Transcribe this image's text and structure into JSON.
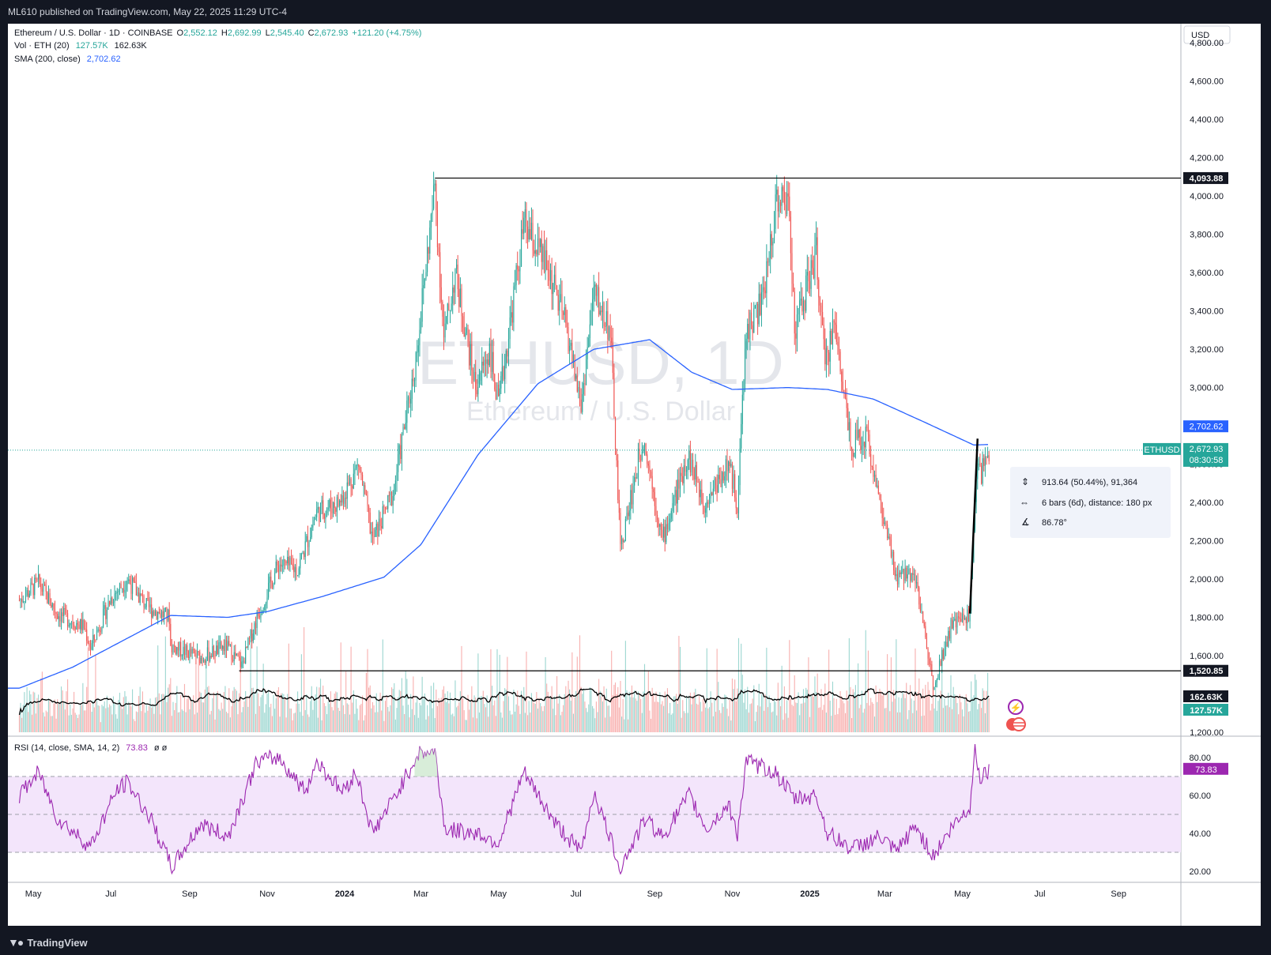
{
  "publisher_line": "ML610 published on TradingView.com, May 22, 2025 11:29 UTC-4",
  "footer_brand": "TradingView",
  "watermark": {
    "main": "ETHUSD, 1D",
    "sub": "Ethereum / U.S. Dollar"
  },
  "currency_button": "USD",
  "legend": {
    "symbol_line": "Ethereum / U.S. Dollar · 1D · COINBASE",
    "ohlc": [
      {
        "k": "O",
        "v": "2,552.12"
      },
      {
        "k": "H",
        "v": "2,692.99"
      },
      {
        "k": "L",
        "v": "2,545.40"
      },
      {
        "k": "C",
        "v": "2,672.93"
      }
    ],
    "change": "+121.20 (+4.75%)",
    "vol_label": "Vol · ETH (20)",
    "vol_v1": "127.57K",
    "vol_v2": "162.63K",
    "sma_label": "SMA (200, close)",
    "sma_value": "2,702.62",
    "rsi_label": "RSI (14, close, SMA, 14, 2)",
    "rsi_value": "73.83",
    "rsi_extra": "ø  ø"
  },
  "price_badges": {
    "high_level": "4,093.88",
    "low_level": "1,520.85",
    "sma": "2,702.62",
    "last": "2,672.93",
    "countdown": "08:30:58",
    "symbol": "ETHUSD",
    "vol_ma": "162.63K",
    "vol": "127.57K",
    "rsi": "73.83"
  },
  "measure_box": {
    "line1": "913.64 (50.44%), 91,364",
    "line2": "6 bars (6d), distance: 180 px",
    "line3": "86.78°"
  },
  "colors": {
    "up": "#26a69a",
    "down": "#ef5350",
    "sma": "#2962ff",
    "rsi": "#7e57c2",
    "rsi_band": "#f3e5fb"
  },
  "chart_data": {
    "type": "candlestick",
    "symbol": "ETHUSD",
    "interval": "1D",
    "price_axis": {
      "min": 1200,
      "max": 4900,
      "ticks": [
        "1,200.00",
        "1,400.00",
        "1,600.00",
        "1,800.00",
        "2,000.00",
        "2,200.00",
        "2,400.00",
        "2,600.00",
        "2,800.00",
        "3,000.00",
        "3,200.00",
        "3,400.00",
        "3,600.00",
        "3,800.00",
        "4,000.00",
        "4,200.00",
        "4,400.00",
        "4,600.00",
        "4,800.00"
      ]
    },
    "time_axis": [
      "May",
      "Jul",
      "Sep",
      "Nov",
      "2024",
      "Mar",
      "May",
      "Jul",
      "Sep",
      "Nov",
      "2025",
      "Mar",
      "May",
      "Jul",
      "Sep"
    ],
    "price_path": [
      [
        "2023-04-20",
        1890
      ],
      [
        "2023-05-05",
        1980
      ],
      [
        "2023-05-20",
        1820
      ],
      [
        "2023-06-10",
        1750
      ],
      [
        "2023-06-15",
        1640
      ],
      [
        "2023-07-01",
        1900
      ],
      [
        "2023-07-14",
        2000
      ],
      [
        "2023-07-30",
        1850
      ],
      [
        "2023-08-16",
        1800
      ],
      [
        "2023-08-17",
        1650
      ],
      [
        "2023-09-10",
        1590
      ],
      [
        "2023-09-30",
        1650
      ],
      [
        "2023-10-12",
        1550
      ],
      [
        "2023-10-24",
        1800
      ],
      [
        "2023-11-10",
        2080
      ],
      [
        "2023-11-25",
        2050
      ],
      [
        "2023-12-10",
        2350
      ],
      [
        "2023-12-28",
        2400
      ],
      [
        "2024-01-12",
        2600
      ],
      [
        "2024-01-23",
        2200
      ],
      [
        "2024-02-08",
        2450
      ],
      [
        "2024-02-25",
        3100
      ],
      [
        "2024-03-12",
        4050
      ],
      [
        "2024-03-19",
        3250
      ],
      [
        "2024-03-28",
        3600
      ],
      [
        "2024-04-13",
        3000
      ],
      [
        "2024-04-24",
        3200
      ],
      [
        "2024-05-01",
        2900
      ],
      [
        "2024-05-21",
        3850
      ],
      [
        "2024-06-10",
        3600
      ],
      [
        "2024-06-24",
        3300
      ],
      [
        "2024-07-05",
        2900
      ],
      [
        "2024-07-15",
        3500
      ],
      [
        "2024-07-28",
        3300
      ],
      [
        "2024-08-05",
        2150
      ],
      [
        "2024-08-23",
        2750
      ],
      [
        "2024-09-07",
        2200
      ],
      [
        "2024-09-27",
        2650
      ],
      [
        "2024-10-10",
        2400
      ],
      [
        "2024-10-29",
        2600
      ],
      [
        "2024-11-05",
        2400
      ],
      [
        "2024-11-12",
        3300
      ],
      [
        "2024-11-25",
        3450
      ],
      [
        "2024-12-06",
        4000
      ],
      [
        "2024-12-16",
        3950
      ],
      [
        "2024-12-20",
        3300
      ],
      [
        "2025-01-06",
        3700
      ],
      [
        "2025-01-13",
        3100
      ],
      [
        "2025-01-20",
        3350
      ],
      [
        "2025-02-03",
        2700
      ],
      [
        "2025-02-15",
        2750
      ],
      [
        "2025-02-25",
        2400
      ],
      [
        "2025-03-10",
        2000
      ],
      [
        "2025-03-24",
        2050
      ],
      [
        "2025-04-08",
        1450
      ],
      [
        "2025-04-22",
        1750
      ],
      [
        "2025-05-07",
        1820
      ],
      [
        "2025-05-13",
        2650
      ],
      [
        "2025-05-16",
        2550
      ],
      [
        "2025-05-22",
        2672.93
      ]
    ],
    "sma200_path": [
      [
        "2023-04-20",
        1430
      ],
      [
        "2023-06-01",
        1540
      ],
      [
        "2023-08-17",
        1810
      ],
      [
        "2023-10-01",
        1800
      ],
      [
        "2023-11-01",
        1830
      ],
      [
        "2023-12-15",
        1910
      ],
      [
        "2024-02-01",
        2010
      ],
      [
        "2024-03-01",
        2180
      ],
      [
        "2024-04-15",
        2650
      ],
      [
        "2024-06-01",
        3020
      ],
      [
        "2024-07-15",
        3200
      ],
      [
        "2024-08-28",
        3250
      ],
      [
        "2024-09-30",
        3080
      ],
      [
        "2024-11-01",
        2990
      ],
      [
        "2024-12-15",
        3000
      ],
      [
        "2025-01-15",
        2990
      ],
      [
        "2025-02-20",
        2940
      ],
      [
        "2025-04-01",
        2820
      ],
      [
        "2025-05-10",
        2700
      ],
      [
        "2025-05-22",
        2702.62
      ]
    ],
    "horizontal_levels": [
      4093.88,
      1520.85
    ],
    "trend_line": {
      "from": [
        "2025-05-07",
        1820
      ],
      "to": [
        "2025-05-13",
        2733
      ]
    },
    "volume": {
      "axis_max_label": "162.63K",
      "ma_label": "20"
    },
    "rsi": {
      "axis": {
        "min": 15,
        "max": 90,
        "ticks": [
          "20.00",
          "40.00",
          "60.00",
          "80.00"
        ]
      },
      "upper_band": 70,
      "mid": 50,
      "lower_band": 30,
      "path": [
        [
          "2023-04-20",
          60
        ],
        [
          "2023-05-05",
          72
        ],
        [
          "2023-05-20",
          48
        ],
        [
          "2023-06-15",
          33
        ],
        [
          "2023-07-05",
          62
        ],
        [
          "2023-07-14",
          67
        ],
        [
          "2023-08-01",
          48
        ],
        [
          "2023-08-18",
          22
        ],
        [
          "2023-09-10",
          45
        ],
        [
          "2023-10-01",
          38
        ],
        [
          "2023-10-24",
          78
        ],
        [
          "2023-11-10",
          80
        ],
        [
          "2023-12-01",
          62
        ],
        [
          "2023-12-10",
          78
        ],
        [
          "2023-12-30",
          62
        ],
        [
          "2024-01-10",
          72
        ],
        [
          "2024-01-23",
          40
        ],
        [
          "2024-02-10",
          60
        ],
        [
          "2024-02-28",
          82
        ],
        [
          "2024-03-12",
          83
        ],
        [
          "2024-03-20",
          42
        ],
        [
          "2024-04-15",
          40
        ],
        [
          "2024-05-01",
          35
        ],
        [
          "2024-05-21",
          72
        ],
        [
          "2024-06-15",
          45
        ],
        [
          "2024-07-05",
          30
        ],
        [
          "2024-07-15",
          62
        ],
        [
          "2024-08-05",
          22
        ],
        [
          "2024-08-25",
          48
        ],
        [
          "2024-09-07",
          38
        ],
        [
          "2024-09-28",
          60
        ],
        [
          "2024-10-12",
          42
        ],
        [
          "2024-10-29",
          55
        ],
        [
          "2024-11-05",
          40
        ],
        [
          "2024-11-12",
          78
        ],
        [
          "2024-12-05",
          72
        ],
        [
          "2024-12-20",
          58
        ],
        [
          "2025-01-06",
          60
        ],
        [
          "2025-01-15",
          40
        ],
        [
          "2025-02-03",
          32
        ],
        [
          "2025-02-25",
          38
        ],
        [
          "2025-03-10",
          30
        ],
        [
          "2025-03-25",
          44
        ],
        [
          "2025-04-08",
          28
        ],
        [
          "2025-04-25",
          45
        ],
        [
          "2025-05-07",
          54
        ],
        [
          "2025-05-11",
          84
        ],
        [
          "2025-05-15",
          70
        ],
        [
          "2025-05-22",
          73.83
        ]
      ]
    }
  }
}
